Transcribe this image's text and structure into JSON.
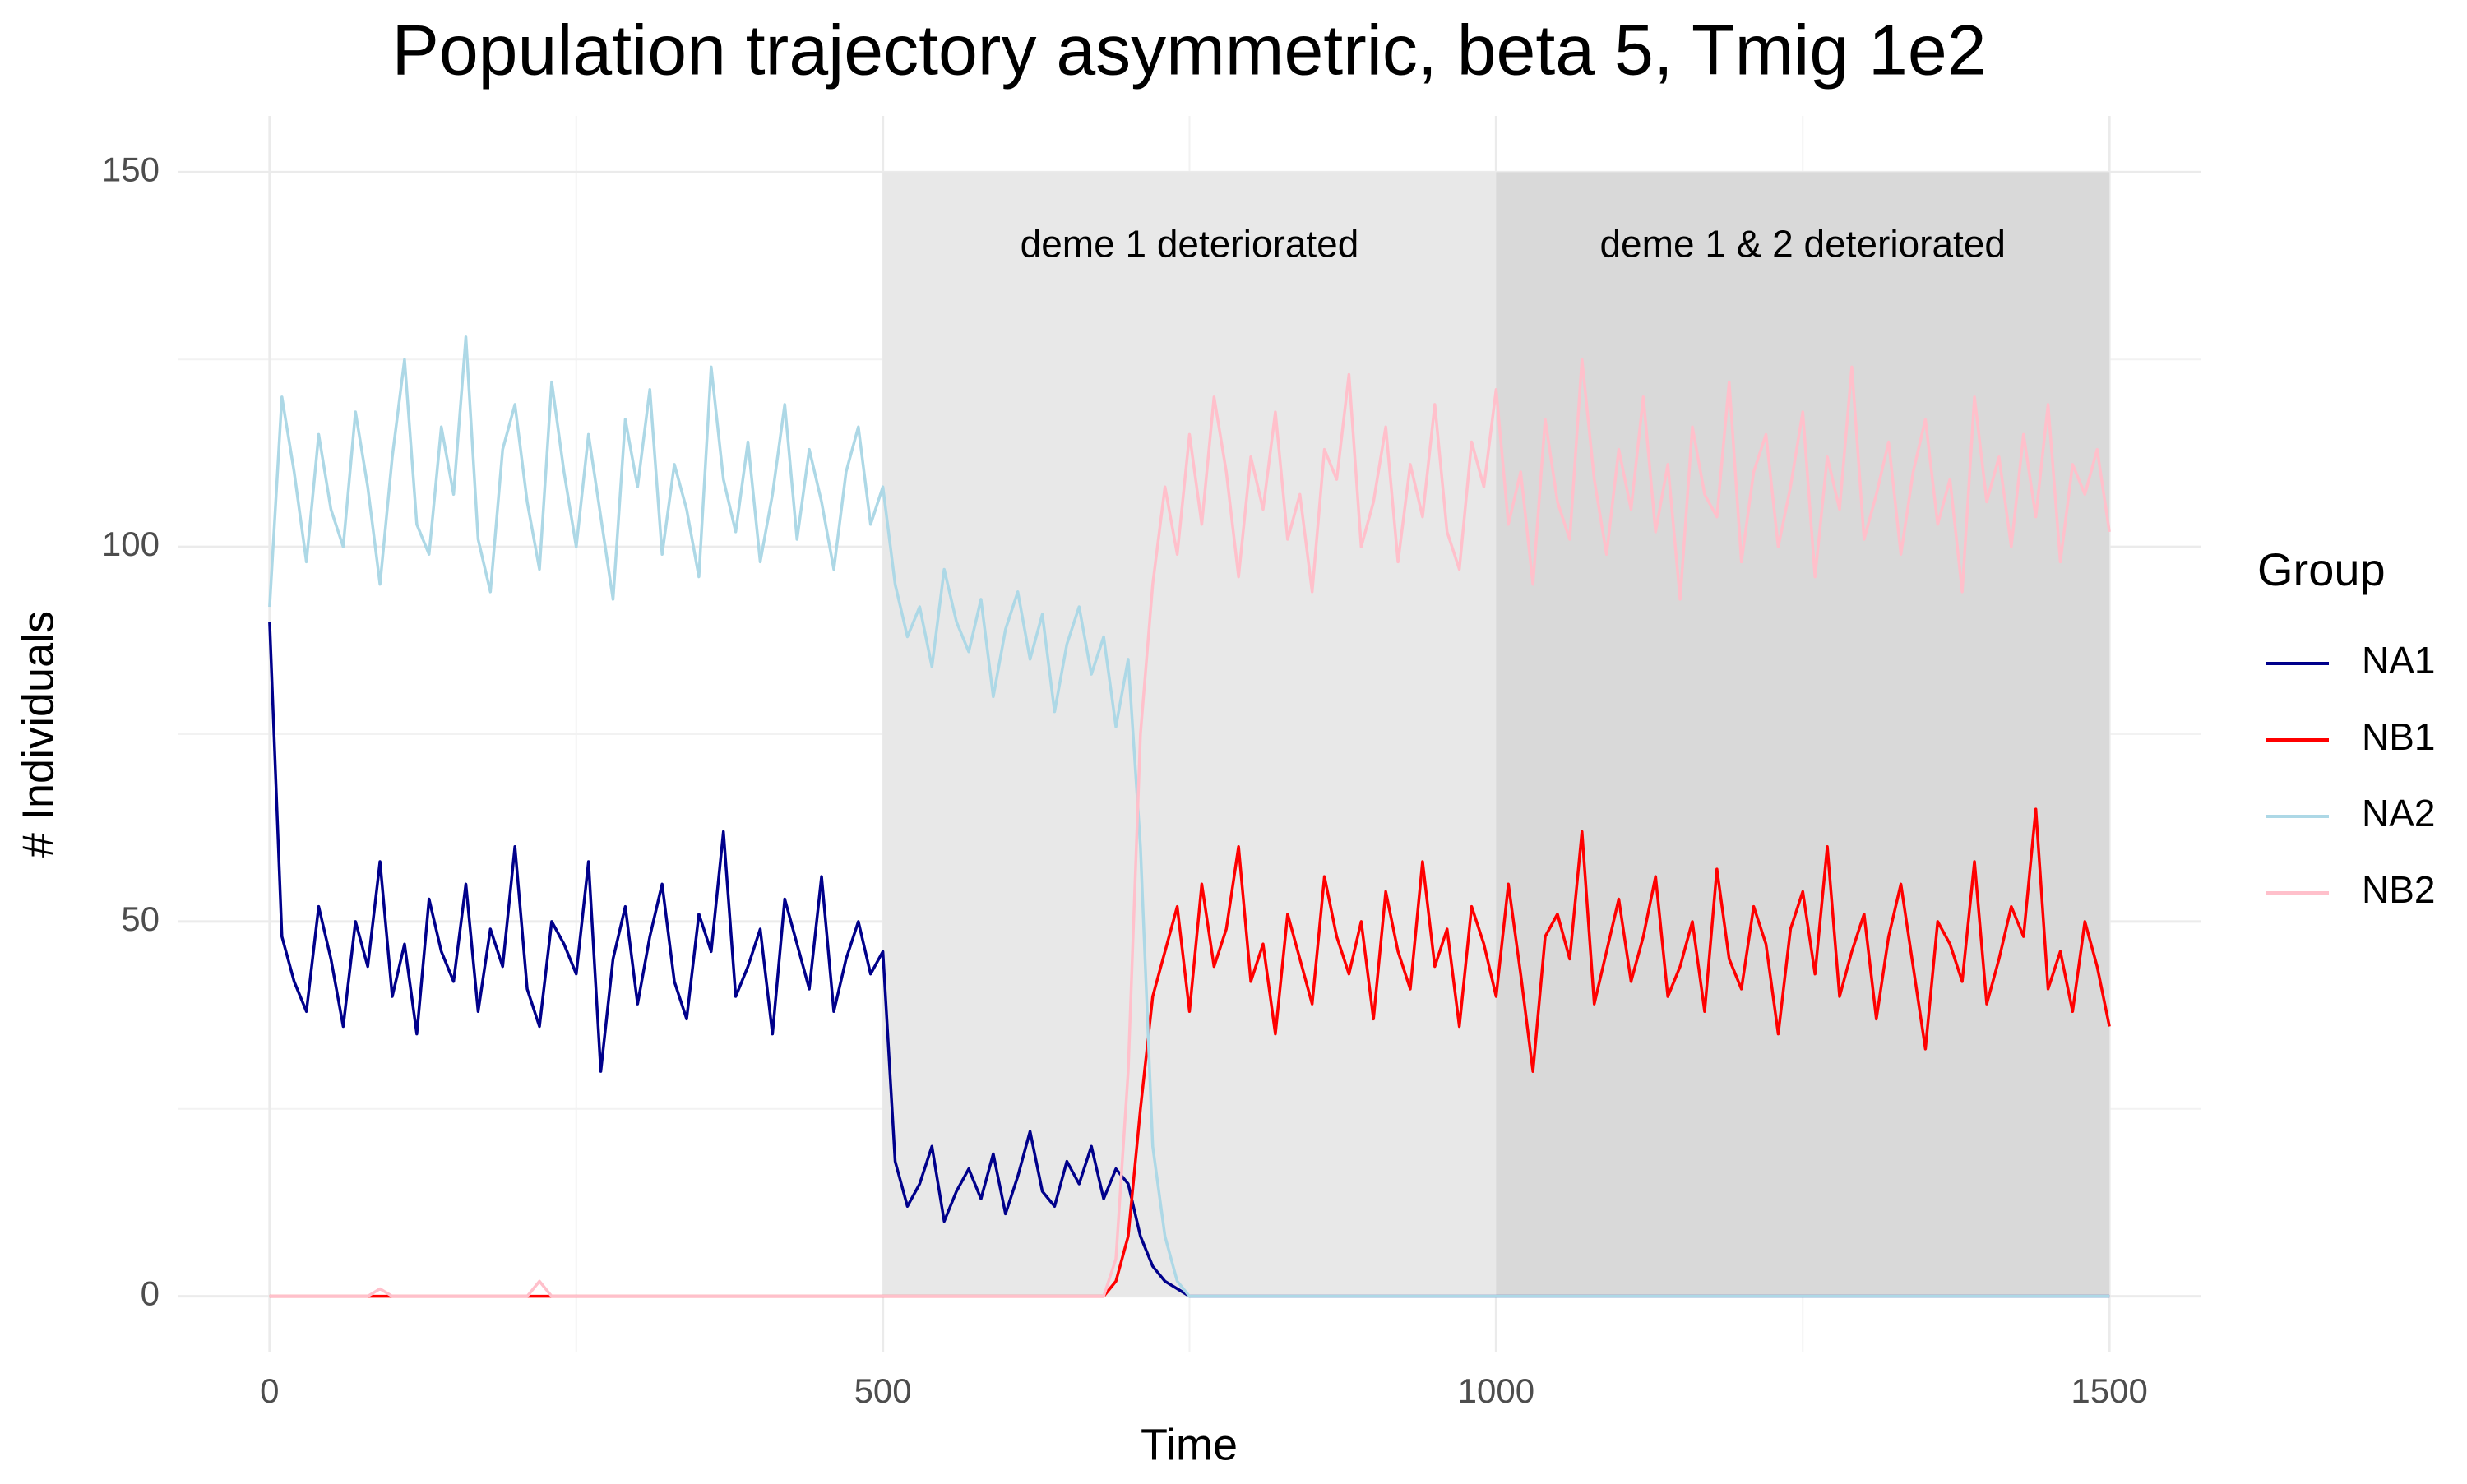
{
  "chart_data": {
    "type": "line",
    "title": "Population trajectory asymmetric, beta 5, Tmig 1e2",
    "x_label": "Time",
    "y_label": "# Individuals",
    "legend_title": "Group",
    "legend_position": "right",
    "grid": true,
    "xlim": [
      -75,
      1575
    ],
    "xticks": [
      0,
      500,
      1000,
      1500
    ],
    "x_minor_ticks": [
      250,
      750,
      1250
    ],
    "ylim": [
      -7.5,
      157.5
    ],
    "yticks": [
      0,
      50,
      100,
      150
    ],
    "y_minor_ticks": [
      25,
      75,
      125
    ],
    "regions": [
      {
        "xmin": 500,
        "xmax": 1000,
        "ymin": 0,
        "ymax": 150,
        "color": "#e8e8e8",
        "label": "deme 1 deteriorated",
        "label_x": 750,
        "label_y": 140
      },
      {
        "xmin": 1000,
        "xmax": 1500,
        "ymin": 0,
        "ymax": 150,
        "color": "#d9d9d9",
        "label": "deme 1 & 2 deteriorated",
        "label_x": 1250,
        "label_y": 140
      }
    ],
    "x": [
      0,
      10,
      20,
      30,
      40,
      50,
      60,
      70,
      80,
      90,
      100,
      110,
      120,
      130,
      140,
      150,
      160,
      170,
      180,
      190,
      200,
      210,
      220,
      230,
      240,
      250,
      260,
      270,
      280,
      290,
      300,
      310,
      320,
      330,
      340,
      350,
      360,
      370,
      380,
      390,
      400,
      410,
      420,
      430,
      440,
      450,
      460,
      470,
      480,
      490,
      500,
      510,
      520,
      530,
      540,
      550,
      560,
      570,
      580,
      590,
      600,
      610,
      620,
      630,
      640,
      650,
      660,
      670,
      680,
      690,
      700,
      710,
      720,
      730,
      740,
      750,
      760,
      770,
      780,
      790,
      800,
      810,
      820,
      830,
      840,
      850,
      860,
      870,
      880,
      890,
      900,
      910,
      920,
      930,
      940,
      950,
      960,
      970,
      980,
      990,
      1000,
      1010,
      1020,
      1030,
      1040,
      1050,
      1060,
      1070,
      1080,
      1090,
      1100,
      1110,
      1120,
      1130,
      1140,
      1150,
      1160,
      1170,
      1180,
      1190,
      1200,
      1210,
      1220,
      1230,
      1240,
      1250,
      1260,
      1270,
      1280,
      1290,
      1300,
      1310,
      1320,
      1330,
      1340,
      1350,
      1360,
      1370,
      1380,
      1390,
      1400,
      1410,
      1420,
      1430,
      1440,
      1450,
      1460,
      1470,
      1480,
      1490,
      1500
    ],
    "series": [
      {
        "name": "NA1",
        "color": "#00008b",
        "values": [
          90,
          48,
          42,
          38,
          52,
          45,
          36,
          50,
          44,
          58,
          40,
          47,
          35,
          53,
          46,
          42,
          55,
          38,
          49,
          44,
          60,
          41,
          36,
          50,
          47,
          43,
          58,
          30,
          45,
          52,
          39,
          48,
          55,
          42,
          37,
          51,
          46,
          62,
          40,
          44,
          49,
          35,
          53,
          47,
          41,
          56,
          38,
          45,
          50,
          43,
          46,
          18,
          12,
          15,
          20,
          10,
          14,
          17,
          13,
          19,
          11,
          16,
          22,
          14,
          12,
          18,
          15,
          20,
          13,
          17,
          15,
          8,
          4,
          2,
          1,
          0,
          0,
          0,
          0,
          0,
          0,
          0,
          0,
          0,
          0,
          0,
          0,
          0,
          0,
          0,
          0,
          0,
          0,
          0,
          0,
          0,
          0,
          0,
          0,
          0,
          0,
          0,
          0,
          0,
          0,
          0,
          0,
          0,
          0,
          0,
          0,
          0,
          0,
          0,
          0,
          0,
          0,
          0,
          0,
          0,
          0,
          0,
          0,
          0,
          0,
          0,
          0,
          0,
          0,
          0,
          0,
          0,
          0,
          0,
          0,
          0,
          0,
          0,
          0,
          0,
          0,
          0,
          0,
          0,
          0,
          0,
          0,
          0,
          0,
          0,
          0
        ]
      },
      {
        "name": "NB1",
        "color": "#ff0000",
        "values": [
          0,
          0,
          0,
          0,
          0,
          0,
          0,
          0,
          0,
          0,
          0,
          0,
          0,
          0,
          0,
          0,
          0,
          0,
          0,
          0,
          0,
          0,
          0,
          0,
          0,
          0,
          0,
          0,
          0,
          0,
          0,
          0,
          0,
          0,
          0,
          0,
          0,
          0,
          0,
          0,
          0,
          0,
          0,
          0,
          0,
          0,
          0,
          0,
          0,
          0,
          0,
          0,
          0,
          0,
          0,
          0,
          0,
          0,
          0,
          0,
          0,
          0,
          0,
          0,
          0,
          0,
          0,
          0,
          0,
          2,
          8,
          25,
          40,
          46,
          52,
          38,
          55,
          44,
          49,
          60,
          42,
          47,
          35,
          51,
          45,
          39,
          56,
          48,
          43,
          50,
          37,
          54,
          46,
          41,
          58,
          44,
          49,
          36,
          52,
          47,
          40,
          55,
          43,
          30,
          48,
          51,
          45,
          62,
          39,
          46,
          53,
          42,
          48,
          56,
          40,
          44,
          50,
          38,
          57,
          45,
          41,
          52,
          47,
          35,
          49,
          54,
          43,
          60,
          40,
          46,
          51,
          37,
          48,
          55,
          44,
          33,
          50,
          47,
          42,
          58,
          39,
          45,
          52,
          48,
          65,
          41,
          46,
          38,
          50,
          44,
          36
        ]
      },
      {
        "name": "NA2",
        "color": "#add8e6",
        "values": [
          92,
          120,
          110,
          98,
          115,
          105,
          100,
          118,
          108,
          95,
          112,
          125,
          103,
          99,
          116,
          107,
          128,
          101,
          94,
          113,
          119,
          106,
          97,
          122,
          110,
          100,
          115,
          104,
          93,
          117,
          108,
          121,
          99,
          111,
          105,
          96,
          124,
          109,
          102,
          114,
          98,
          107,
          119,
          101,
          113,
          106,
          97,
          110,
          116,
          103,
          108,
          95,
          88,
          92,
          84,
          97,
          90,
          86,
          93,
          80,
          89,
          94,
          85,
          91,
          78,
          87,
          92,
          83,
          88,
          76,
          85,
          60,
          20,
          8,
          2,
          0,
          0,
          0,
          0,
          0,
          0,
          0,
          0,
          0,
          0,
          0,
          0,
          0,
          0,
          0,
          0,
          0,
          0,
          0,
          0,
          0,
          0,
          0,
          0,
          0,
          0,
          0,
          0,
          0,
          0,
          0,
          0,
          0,
          0,
          0,
          0,
          0,
          0,
          0,
          0,
          0,
          0,
          0,
          0,
          0,
          0,
          0,
          0,
          0,
          0,
          0,
          0,
          0,
          0,
          0,
          0,
          0,
          0,
          0,
          0,
          0,
          0,
          0,
          0,
          0,
          0,
          0,
          0,
          0,
          0,
          0,
          0,
          0,
          0,
          0,
          0
        ]
      },
      {
        "name": "NB2",
        "color": "#ffc0cb",
        "values": [
          0,
          0,
          0,
          0,
          0,
          0,
          0,
          0,
          0,
          1,
          0,
          0,
          0,
          0,
          0,
          0,
          0,
          0,
          0,
          0,
          0,
          0,
          2,
          0,
          0,
          0,
          0,
          0,
          0,
          0,
          0,
          0,
          0,
          0,
          0,
          0,
          0,
          0,
          0,
          0,
          0,
          0,
          0,
          0,
          0,
          0,
          0,
          0,
          0,
          0,
          0,
          0,
          0,
          0,
          0,
          0,
          0,
          0,
          0,
          0,
          0,
          0,
          0,
          0,
          0,
          0,
          0,
          0,
          0,
          5,
          30,
          75,
          95,
          108,
          99,
          115,
          103,
          120,
          110,
          96,
          112,
          105,
          118,
          101,
          107,
          94,
          113,
          109,
          123,
          100,
          106,
          116,
          98,
          111,
          104,
          119,
          102,
          97,
          114,
          108,
          121,
          103,
          110,
          95,
          117,
          106,
          101,
          125,
          109,
          99,
          113,
          105,
          120,
          102,
          111,
          93,
          116,
          107,
          104,
          122,
          98,
          110,
          115,
          100,
          108,
          118,
          96,
          112,
          105,
          124,
          101,
          107,
          114,
          99,
          110,
          117,
          103,
          109,
          94,
          120,
          106,
          112,
          100,
          115,
          104,
          119,
          98,
          111,
          107,
          113,
          102
        ]
      }
    ]
  }
}
